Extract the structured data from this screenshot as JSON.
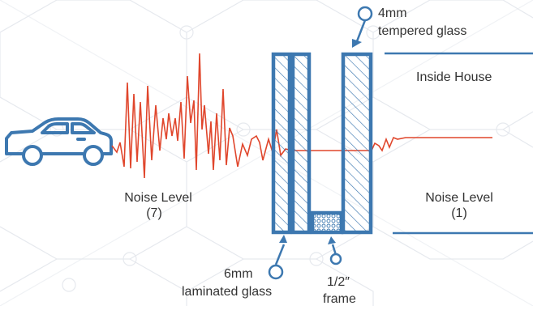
{
  "labels": {
    "tempered_line1": "4mm",
    "tempered_line2": "tempered glass",
    "inside_house": "Inside House",
    "noise_outside_line1": "Noise Level",
    "noise_outside_line2": "(7)",
    "noise_inside_line1": "Noise Level",
    "noise_inside_line2": "(1)",
    "laminated_line1": "6mm",
    "laminated_line2": "laminated glass",
    "frame_line1": "1/2″",
    "frame_line2": "frame"
  },
  "colors": {
    "glass_blue": "#3d78b0",
    "noise_red": "#e0462c",
    "pattern_grey": "#e6e9ee",
    "text": "#333333"
  },
  "icons": {
    "car": "car-icon",
    "callout": "callout-circle-icon"
  }
}
